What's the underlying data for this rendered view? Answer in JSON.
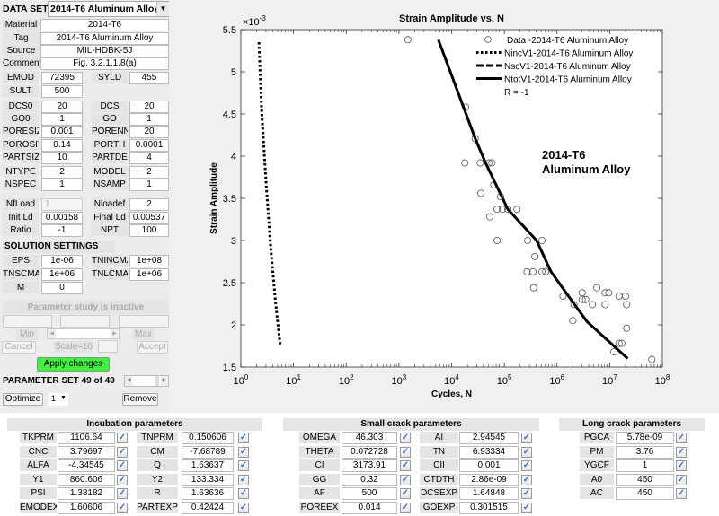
{
  "data_set": {
    "label": "DATA SET",
    "selected": "2014-T6 Aluminum Alloy"
  },
  "material_info": [
    {
      "label": "Material",
      "value": "2014-T6"
    },
    {
      "label": "Tag",
      "value": "2014-T6 Aluminum Alloy"
    },
    {
      "label": "Source",
      "value": "MIL-HDBK-5J"
    },
    {
      "label": "Comment",
      "value": "Fig. 3.2.1.1.8(a)"
    }
  ],
  "params": [
    [
      {
        "label": "EMOD",
        "value": "72395"
      },
      {
        "label": "SYLD",
        "value": "455"
      }
    ],
    [
      {
        "label": "SULT",
        "value": "500"
      }
    ],
    [
      {
        "label": "DCS0",
        "value": "20"
      },
      {
        "label": "DCS",
        "value": "20"
      }
    ],
    [
      {
        "label": "GO0",
        "value": "1"
      },
      {
        "label": "GO",
        "value": "1"
      }
    ],
    [
      {
        "label": "PORESIZ",
        "value": "0.001"
      },
      {
        "label": "PORENN",
        "value": "20"
      }
    ],
    [
      {
        "label": "POROSIT",
        "value": "0.14"
      },
      {
        "label": "PORTH",
        "value": "0.0001"
      }
    ],
    [
      {
        "label": "PARTSIZ",
        "value": "10"
      },
      {
        "label": "PARTDE",
        "value": "4"
      }
    ],
    [
      {
        "label": "NTYPE",
        "value": "2"
      },
      {
        "label": "MODEL",
        "value": "2"
      }
    ],
    [
      {
        "label": "NSPEC",
        "value": "1"
      },
      {
        "label": "NSAMP",
        "value": "1"
      }
    ],
    [
      {
        "label": "NfLoad",
        "value": "1",
        "disabled": true
      },
      {
        "label": "Nloadef",
        "value": "2"
      }
    ],
    [
      {
        "label": "Init Ld",
        "value": "0.00158"
      },
      {
        "label": "Final Ld",
        "value": "0.00537"
      }
    ],
    [
      {
        "label": "Ratio",
        "value": "-1"
      },
      {
        "label": "NPT",
        "value": "100"
      }
    ]
  ],
  "solution": {
    "title": "SOLUTION SETTINGS",
    "rows": [
      [
        {
          "label": "EPS",
          "value": "1e-06"
        },
        {
          "label": "TNINCMA",
          "value": "1e+08"
        }
      ],
      [
        {
          "label": "TNSCMA",
          "value": "1e+06"
        },
        {
          "label": "TNLCMA",
          "value": "1e+06"
        }
      ],
      [
        {
          "label": "M",
          "value": "0"
        }
      ]
    ]
  },
  "param_study": {
    "status": "Parameter study is inactive",
    "min_label": "Min",
    "max_label": "Max",
    "cancel_label": "Cancel",
    "scale_label": "Scale=10",
    "accept_label": "Accept",
    "apply_label": "Apply changes",
    "apply_color": "#44ee44",
    "param_set_label": "PARAMETER SET 49 of 49",
    "optimize_label": "Optimize",
    "optimize_count": "1",
    "remove_label": "Remove"
  },
  "bottom_panels": [
    {
      "title": "Incubation parameters",
      "rows": [
        [
          {
            "label": "TKPRM",
            "value": "1106.64",
            "checked": true
          },
          {
            "label": "TNPRM",
            "value": "0.150606",
            "checked": true
          }
        ],
        [
          {
            "label": "CNC",
            "value": "3.79697",
            "checked": true
          },
          {
            "label": "CM",
            "value": "-7.68789",
            "checked": true
          }
        ],
        [
          {
            "label": "ALFA",
            "value": "-4.34545",
            "checked": true
          },
          {
            "label": "Q",
            "value": "1.63637",
            "checked": true
          }
        ],
        [
          {
            "label": "Y1",
            "value": "860.606",
            "checked": true
          },
          {
            "label": "Y2",
            "value": "133.334",
            "checked": true
          }
        ],
        [
          {
            "label": "PSI",
            "value": "1.38182",
            "checked": true
          },
          {
            "label": "R",
            "value": "1.63636",
            "checked": true
          }
        ],
        [
          {
            "label": "EMODEX",
            "value": "1.60606",
            "checked": true
          },
          {
            "label": "PARTEXP",
            "value": "0.42424",
            "checked": true
          }
        ]
      ]
    },
    {
      "title": "Small crack parameters",
      "rows": [
        [
          {
            "label": "OMEGA",
            "value": "46.303",
            "checked": true
          },
          {
            "label": "AI",
            "value": "2.94545",
            "checked": true
          }
        ],
        [
          {
            "label": "THETA",
            "value": "0.072728",
            "checked": true
          },
          {
            "label": "TN",
            "value": "6.93334",
            "checked": true
          }
        ],
        [
          {
            "label": "CI",
            "value": "3173.91",
            "checked": true
          },
          {
            "label": "CII",
            "value": "0.001",
            "checked": true
          }
        ],
        [
          {
            "label": "GG",
            "value": "0.32",
            "checked": true
          },
          {
            "label": "CTDTH",
            "value": "2.86e-09",
            "checked": true
          }
        ],
        [
          {
            "label": "AF",
            "value": "500",
            "checked": true
          },
          {
            "label": "DCSEXP",
            "value": "1.64848",
            "checked": true
          }
        ],
        [
          {
            "label": "POREEX",
            "value": "0.014",
            "checked": true
          },
          {
            "label": "GOEXP",
            "value": "0.301515",
            "checked": true
          }
        ]
      ]
    },
    {
      "title": "Long crack parameters",
      "rows": [
        [
          {
            "label": "PGCA",
            "value": "5.78e-09",
            "checked": true
          }
        ],
        [
          {
            "label": "PM",
            "value": "3.76",
            "checked": true
          }
        ],
        [
          {
            "label": "YGCF",
            "value": "1",
            "checked": true
          }
        ],
        [
          {
            "label": "A0",
            "value": "450",
            "checked": true
          }
        ],
        [
          {
            "label": "AC",
            "value": "450",
            "checked": true
          }
        ]
      ]
    }
  ],
  "chart_data": {
    "type": "scatter",
    "title": "Strain Amplitude vs. N",
    "xlabel": "Cycles, N",
    "ylabel": "Strain Amplitude",
    "x_scale": "log",
    "xlim": [
      1,
      100000000
    ],
    "ylim": [
      1.5,
      5.5
    ],
    "y_multiplier": {
      "base": "×10",
      "exponent": "-3"
    },
    "x_tick_base": "10",
    "x_tick_exponents": [
      "0",
      "1",
      "2",
      "3",
      "4",
      "5",
      "6",
      "7",
      "8"
    ],
    "y_ticks": [
      "1.5",
      "2",
      "2.5",
      "3",
      "3.5",
      "4",
      "4.5",
      "5",
      "5.5"
    ],
    "grid": false,
    "legend_position": "top-right",
    "annotation": [
      "2014-T6",
      "Aluminum Alloy"
    ],
    "legend_note": "R = -1",
    "series": [
      {
        "name": "Data -2014-T6 Aluminum Alloy",
        "style": "circle",
        "points": [
          [
            1480,
            5.38
          ],
          [
            18500,
            4.58
          ],
          [
            28000,
            4.21
          ],
          [
            17800,
            3.92
          ],
          [
            35000,
            3.92
          ],
          [
            51000,
            3.92
          ],
          [
            58000,
            3.92
          ],
          [
            63000,
            3.66
          ],
          [
            36000,
            3.56
          ],
          [
            85000,
            3.52
          ],
          [
            73000,
            3.37
          ],
          [
            92000,
            3.37
          ],
          [
            117000,
            3.37
          ],
          [
            174000,
            3.37
          ],
          [
            53000,
            3.28
          ],
          [
            73000,
            3.0
          ],
          [
            277000,
            3.0
          ],
          [
            520000,
            3.0
          ],
          [
            380000,
            2.81
          ],
          [
            270000,
            2.63
          ],
          [
            350000,
            2.63
          ],
          [
            520000,
            2.63
          ],
          [
            610000,
            2.63
          ],
          [
            360000,
            2.44
          ],
          [
            1300000,
            2.34
          ],
          [
            3000000,
            2.38
          ],
          [
            3000000,
            2.3
          ],
          [
            3500000,
            2.3
          ],
          [
            5700000,
            2.44
          ],
          [
            8200000,
            2.38
          ],
          [
            9600000,
            2.38
          ],
          [
            15000000,
            2.34
          ],
          [
            20000000,
            2.34
          ],
          [
            2100000,
            2.24
          ],
          [
            4700000,
            2.24
          ],
          [
            8200000,
            2.24
          ],
          [
            21000000,
            2.24
          ],
          [
            2000000,
            2.05
          ],
          [
            21000000,
            1.96
          ],
          [
            15000000,
            1.78
          ],
          [
            17000000,
            1.78
          ],
          [
            12000000,
            1.68
          ],
          [
            63000000,
            1.59
          ]
        ]
      },
      {
        "name": "NincV1-2014-T6 Aluminum Alloy",
        "style": "dotted",
        "points": [
          [
            2.2,
            5.35
          ],
          [
            2.5,
            4.5
          ],
          [
            3.0,
            3.7
          ],
          [
            3.7,
            2.9
          ],
          [
            4.5,
            2.3
          ],
          [
            5.6,
            1.75
          ]
        ]
      },
      {
        "name": "NscV1-2014-T6 Aluminum Alloy",
        "style": "dashed",
        "points": []
      },
      {
        "name": "NtotV1-2014-T6 Aluminum Alloy",
        "style": "solid",
        "points": [
          [
            5600,
            5.38
          ],
          [
            28000,
            4.21
          ],
          [
            44000,
            3.92
          ],
          [
            117000,
            3.37
          ],
          [
            410000,
            3.0
          ],
          [
            770000,
            2.63
          ],
          [
            2100000,
            2.25
          ],
          [
            3700000,
            2.04
          ],
          [
            22000000,
            1.6
          ]
        ]
      }
    ]
  }
}
